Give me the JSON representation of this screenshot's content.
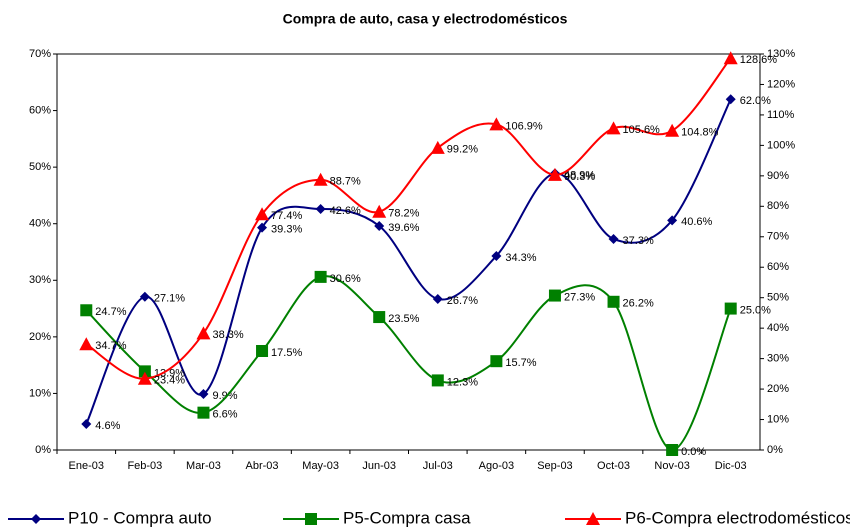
{
  "chart_data": {
    "type": "line",
    "title": "Compra de auto, casa y electrodomésticos",
    "categories": [
      "Ene-03",
      "Feb-03",
      "Mar-03",
      "Abr-03",
      "May-03",
      "Jun-03",
      "Jul-03",
      "Ago-03",
      "Sep-03",
      "Oct-03",
      "Nov-03",
      "Dic-03"
    ],
    "series": [
      {
        "name": "P10 - Compra auto",
        "color": "#000080",
        "marker": "diamond",
        "values": [
          4.6,
          27.1,
          9.9,
          39.3,
          42.6,
          39.6,
          26.7,
          34.3,
          48.9,
          37.3,
          40.6,
          62.0
        ],
        "value_labels": [
          "4.6%",
          "27.1%",
          "9.9%",
          "39.3%",
          "42.6%",
          "39.6%",
          "26.7%",
          "34.3%",
          "48.9%",
          "37.3%",
          "40.6%",
          "62.0%"
        ]
      },
      {
        "name": "P5-Compra casa",
        "color": "#008000",
        "marker": "square",
        "values": [
          24.7,
          13.9,
          6.6,
          17.5,
          30.6,
          23.5,
          12.3,
          15.7,
          27.3,
          26.2,
          0.0,
          25.0
        ],
        "value_labels": [
          "24.7%",
          "13.9%",
          "6.6%",
          "17.5%",
          "30.6%",
          "23.5%",
          "12.3%",
          "15.7%",
          "27.3%",
          "26.2%",
          "0.0%",
          "25.0%"
        ]
      },
      {
        "name": "P6-Compra electrodomésticos",
        "color": "#ff0000",
        "marker": "triangle",
        "axis": "y2",
        "values": [
          34.7,
          23.4,
          38.3,
          77.4,
          88.7,
          78.2,
          99.2,
          106.9,
          90.3,
          105.6,
          104.8,
          128.6
        ],
        "value_labels": [
          "34.7%",
          "23.4%",
          "38.3%",
          "77.4%",
          "88.7%",
          "78.2%",
          "99.2%",
          "106.9%",
          "90.3%",
          "105.6%",
          "104.8%",
          "128.6%"
        ]
      }
    ],
    "ylim": [
      0,
      70
    ],
    "yticks": [
      {
        "value": 0,
        "label": "0%"
      },
      {
        "value": 10,
        "label": "10%"
      },
      {
        "value": 20,
        "label": "20%"
      },
      {
        "value": 30,
        "label": "30%"
      },
      {
        "value": 40,
        "label": "40%"
      },
      {
        "value": 50,
        "label": "50%"
      },
      {
        "value": 60,
        "label": "60%"
      },
      {
        "value": 70,
        "label": "70%"
      }
    ],
    "y2lim": [
      0,
      130
    ],
    "y2ticks": [
      {
        "value": 0,
        "label": "0%"
      },
      {
        "value": 10,
        "label": "10%"
      },
      {
        "value": 20,
        "label": "20%"
      },
      {
        "value": 30,
        "label": "30%"
      },
      {
        "value": 40,
        "label": "40%"
      },
      {
        "value": 50,
        "label": "50%"
      },
      {
        "value": 60,
        "label": "60%"
      },
      {
        "value": 70,
        "label": "70%"
      },
      {
        "value": 80,
        "label": "80%"
      },
      {
        "value": 90,
        "label": "90%"
      },
      {
        "value": 100,
        "label": "100%"
      },
      {
        "value": 110,
        "label": "110%"
      },
      {
        "value": 120,
        "label": "120%"
      },
      {
        "value": 130,
        "label": "130%"
      }
    ],
    "legend": "bottom"
  }
}
